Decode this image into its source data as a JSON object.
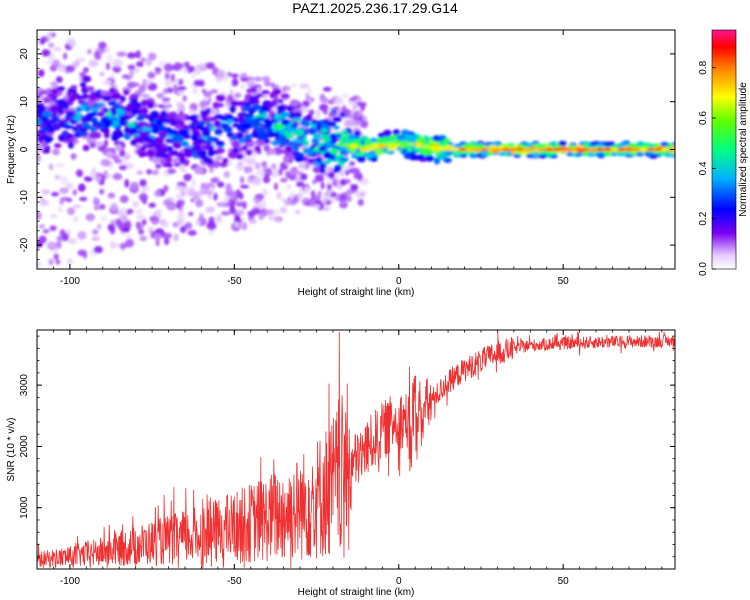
{
  "title": "PAZ1.2025.236.17.29.G14",
  "chart_data": [
    {
      "type": "heatmap",
      "xlabel": "Height of straight line (km)",
      "ylabel": "Frequency (Hz)",
      "xlim": [
        -110,
        84
      ],
      "ylim": [
        -25,
        25
      ],
      "xticks": [
        -100,
        -50,
        0,
        50
      ],
      "yticks": [
        -20,
        -10,
        0,
        10,
        20
      ],
      "colorbar": {
        "label": "Normalized spectral amplitude",
        "ticks": [
          "0.0",
          "0.2",
          "0.4",
          "0.6",
          "0.8"
        ],
        "range": [
          0,
          0.95
        ]
      },
      "ridge": {
        "x": [
          -110,
          -95,
          -85,
          -75,
          -65,
          -55,
          -45,
          -35,
          -25,
          -18,
          -10,
          -5,
          0,
          5,
          10,
          20,
          30,
          40,
          50,
          60,
          70,
          84
        ],
        "freq": [
          5,
          8,
          6,
          4,
          2,
          3,
          6,
          5,
          2,
          1,
          0.5,
          0.8,
          1.5,
          1.0,
          0.3,
          0,
          0,
          0,
          0,
          0,
          0,
          0
        ],
        "amplitude": [
          0.3,
          0.4,
          0.4,
          0.35,
          0.35,
          0.35,
          0.4,
          0.45,
          0.5,
          0.65,
          0.75,
          0.8,
          0.7,
          0.75,
          0.8,
          0.85,
          0.9,
          0.88,
          0.9,
          0.88,
          0.86,
          0.85
        ]
      }
    },
    {
      "type": "line",
      "xlabel": "Height of straight line (km)",
      "ylabel": "SNR (10 * v/v)",
      "xlim": [
        -110,
        84
      ],
      "ylim": [
        0,
        3900
      ],
      "xticks": [
        -100,
        -50,
        0,
        50
      ],
      "yticks": [
        1000,
        2000,
        3000
      ],
      "color": "#f03030",
      "envelope": {
        "x": [
          -110,
          -100,
          -90,
          -80,
          -70,
          -60,
          -50,
          -40,
          -35,
          -30,
          -25,
          -20,
          -15,
          -10,
          -5,
          0,
          5,
          10,
          15,
          20,
          25,
          30,
          35,
          40,
          50,
          60,
          70,
          84
        ],
        "y": [
          150,
          200,
          280,
          380,
          470,
          560,
          680,
          820,
          900,
          1000,
          1150,
          1350,
          1650,
          1950,
          2250,
          2450,
          2400,
          2750,
          3050,
          3250,
          3400,
          3520,
          3600,
          3650,
          3680,
          3700,
          3710,
          3720
        ]
      }
    }
  ]
}
